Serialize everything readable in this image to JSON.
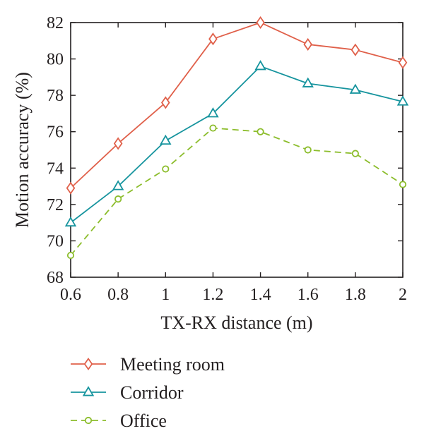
{
  "chart_data": {
    "type": "line",
    "title": "",
    "xlabel": "TX-RX distance (m)",
    "ylabel": "Motion accuracy (%)",
    "x": [
      0.6,
      0.8,
      1.0,
      1.2,
      1.4,
      1.6,
      1.8,
      2.0
    ],
    "xlim": [
      0.6,
      2.0
    ],
    "ylim": [
      68,
      82
    ],
    "xticks": [
      "0.6",
      "0.8",
      "1",
      "1.2",
      "1.4",
      "1.6",
      "1.8",
      "2"
    ],
    "yticks": [
      "68",
      "70",
      "72",
      "74",
      "76",
      "78",
      "80",
      "82"
    ],
    "grid": false,
    "legend_position": "bottom",
    "series": [
      {
        "name": "Meeting room",
        "values": [
          72.9,
          75.35,
          77.6,
          81.1,
          82.0,
          80.8,
          80.5,
          79.8
        ],
        "color": "#e0604a",
        "marker": "diamond",
        "line_style": "solid"
      },
      {
        "name": "Corridor",
        "values": [
          71.0,
          73.0,
          75.5,
          77.0,
          79.6,
          78.65,
          78.3,
          77.65
        ],
        "color": "#16949e",
        "marker": "triangle",
        "line_style": "solid"
      },
      {
        "name": "Office",
        "values": [
          69.2,
          72.3,
          73.95,
          76.2,
          76.0,
          75.0,
          74.8,
          73.1
        ],
        "color": "#8cbd2c",
        "marker": "circle",
        "line_style": "dashed"
      }
    ]
  }
}
